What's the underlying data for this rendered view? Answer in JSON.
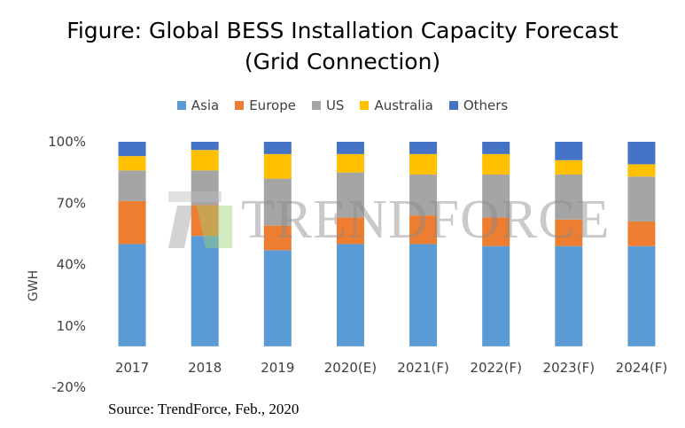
{
  "title_line1": "Figure: Global BESS Installation Capacity Forecast",
  "title_line2": "(Grid Connection)",
  "source": "Source: TrendForce, Feb., 2020",
  "watermark": "TRENDFORCE",
  "colors": {
    "Asia": "#5b9bd5",
    "Europe": "#ed7d31",
    "US": "#a5a5a5",
    "Australia": "#ffc000",
    "Others": "#4472c4"
  },
  "chart_data": {
    "type": "bar",
    "stacked": true,
    "ylabel": "GWH",
    "xlabel": "",
    "ylim": [
      -20,
      100
    ],
    "yticks": [
      -20,
      10,
      40,
      70,
      100
    ],
    "ytick_labels": [
      "-20%",
      "10%",
      "40%",
      "70%",
      "100%"
    ],
    "grid": false,
    "legend_position": "top",
    "categories": [
      "2017",
      "2018",
      "2019",
      "2020(E)",
      "2021(F)",
      "2022(F)",
      "2023(F)",
      "2024(F)"
    ],
    "series": [
      {
        "name": "Asia",
        "values": [
          50,
          54,
          47,
          50,
          50,
          49,
          49,
          49
        ]
      },
      {
        "name": "Europe",
        "values": [
          21,
          15,
          12,
          13,
          14,
          14,
          13,
          12
        ]
      },
      {
        "name": "US",
        "values": [
          15,
          17,
          23,
          22,
          20,
          21,
          22,
          22
        ]
      },
      {
        "name": "Australia",
        "values": [
          7,
          10,
          12,
          9,
          10,
          10,
          7,
          6
        ]
      },
      {
        "name": "Others",
        "values": [
          7,
          4,
          6,
          6,
          6,
          6,
          9,
          11
        ]
      }
    ]
  }
}
